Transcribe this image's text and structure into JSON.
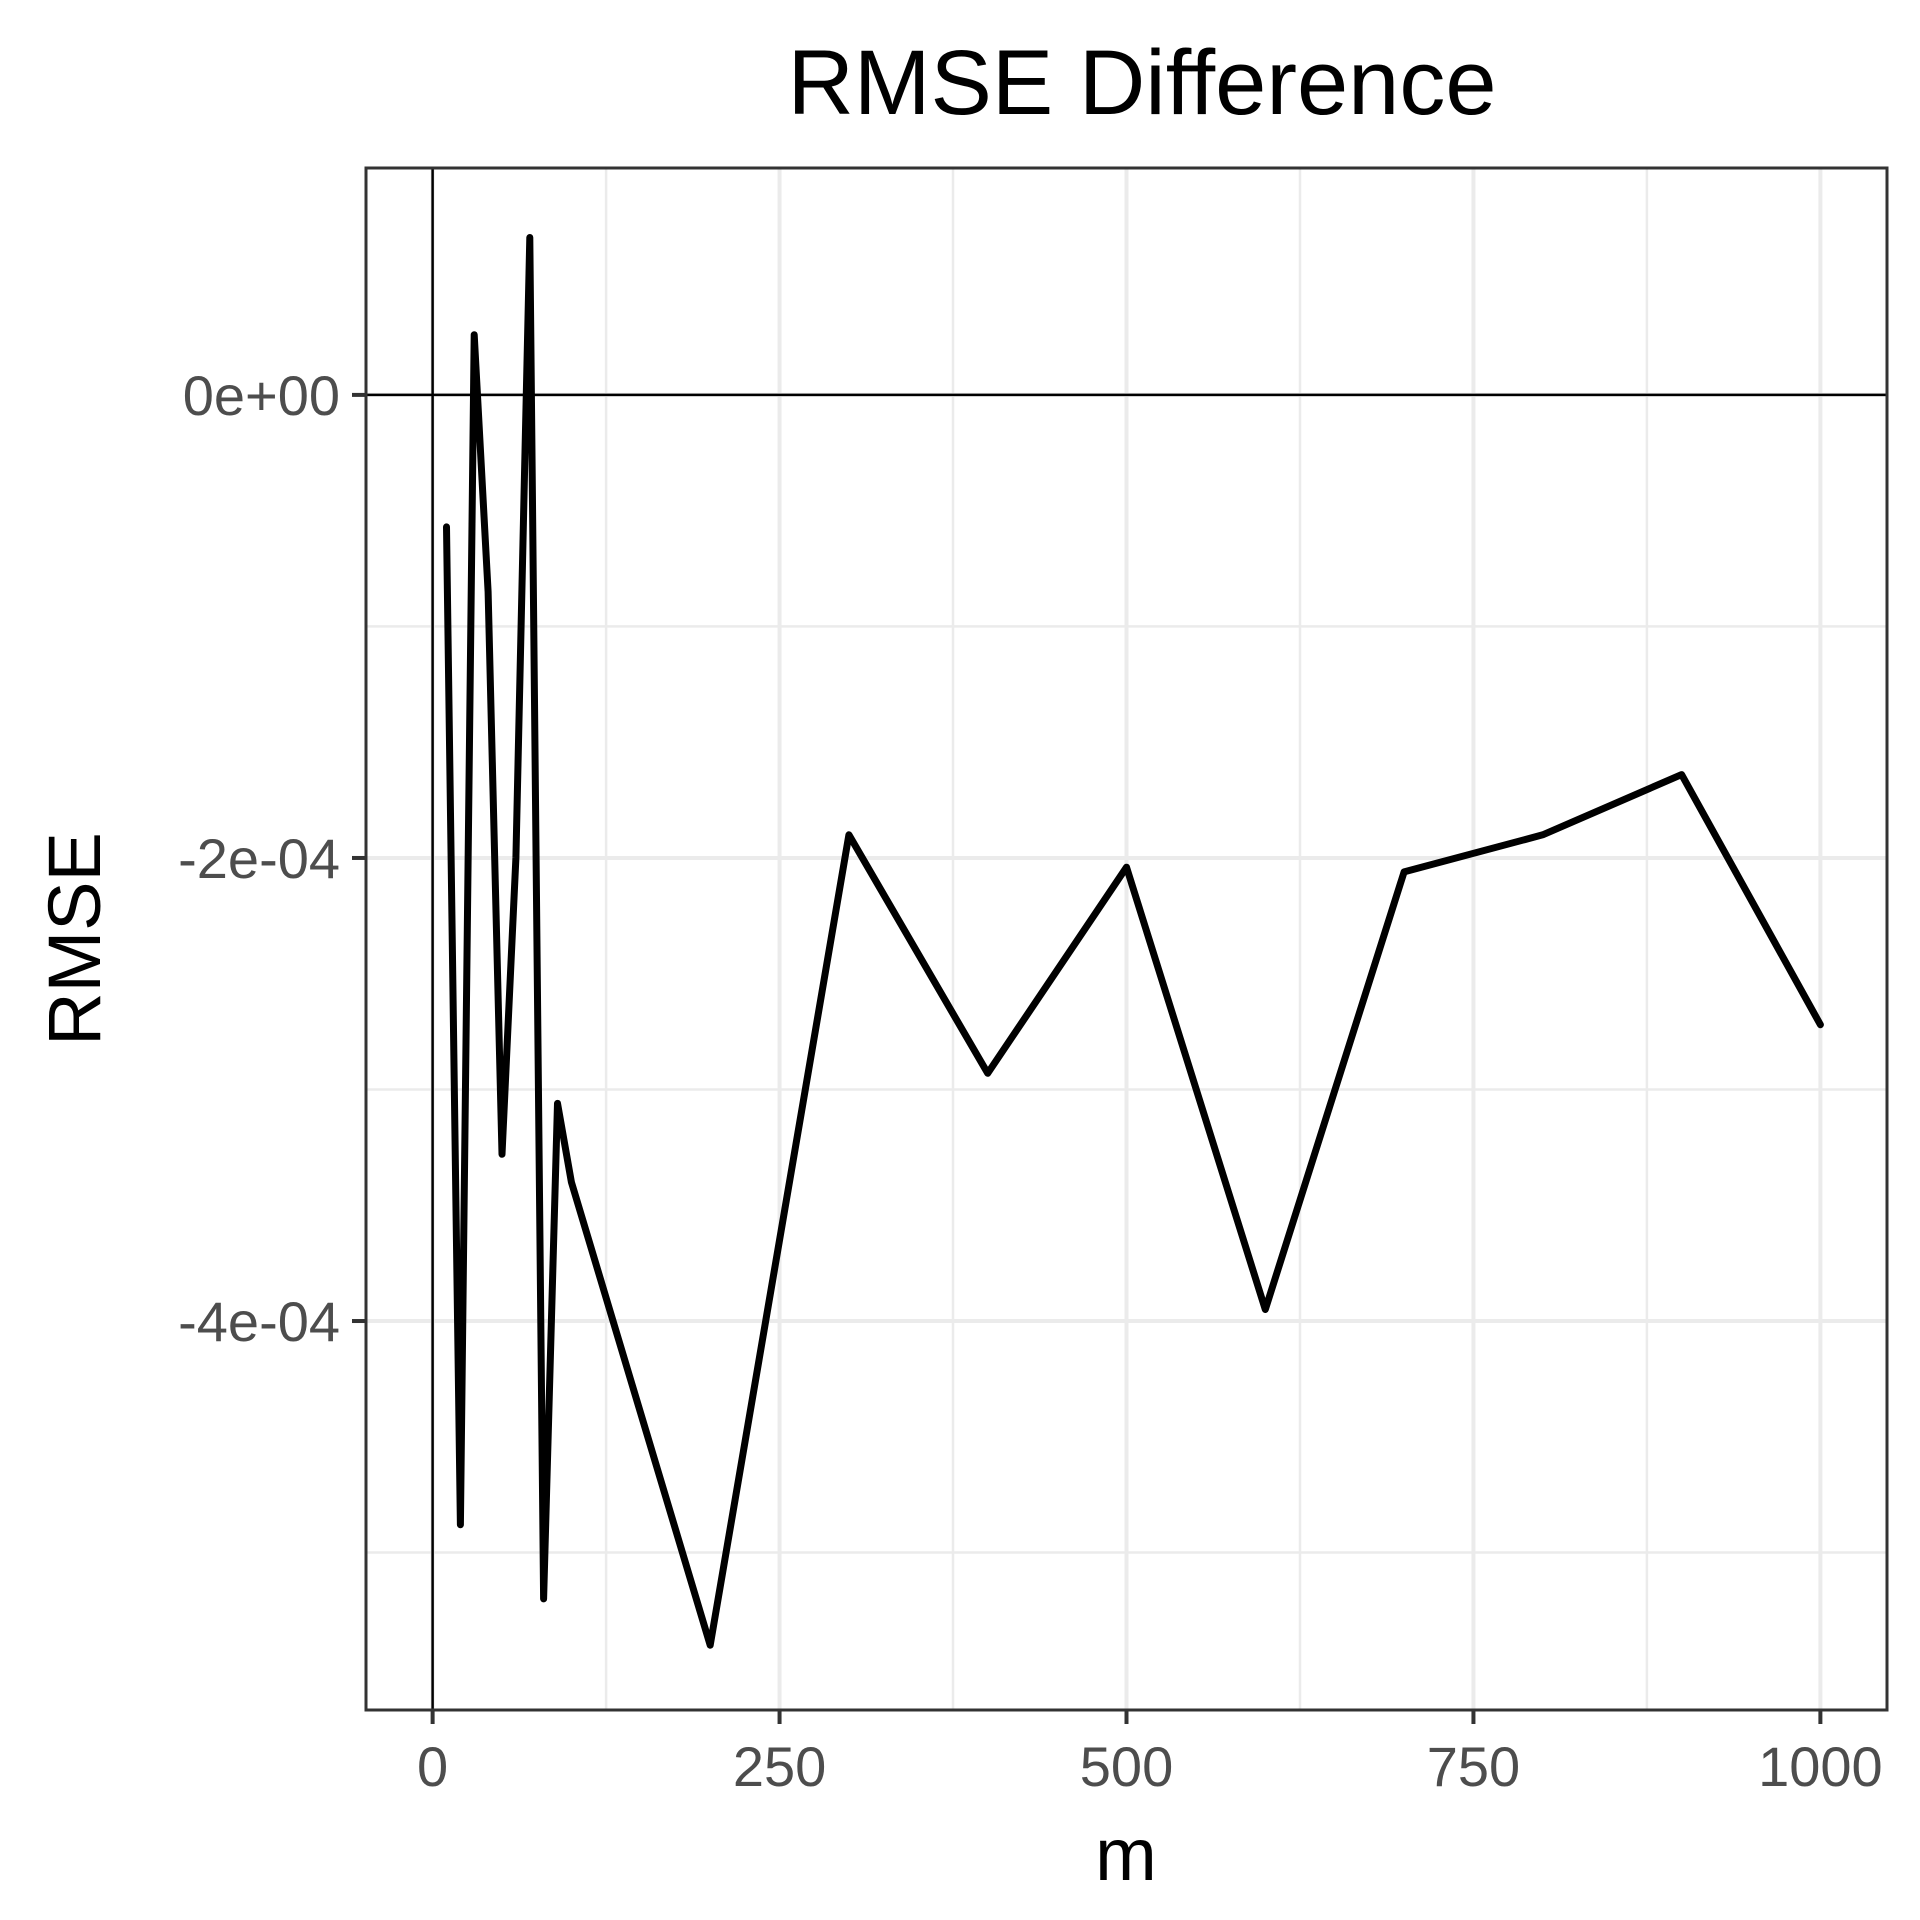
{
  "chart_data": {
    "type": "line",
    "title": "RMSE Difference",
    "xlabel": "m",
    "ylabel": "RMSE",
    "xlim": [
      -48,
      1048
    ],
    "ylim": [
      -0.000568,
      9.8e-05
    ],
    "x_ticks": [
      0,
      250,
      500,
      750,
      1000
    ],
    "x_tick_labels": [
      "0",
      "250",
      "500",
      "750",
      "1000"
    ],
    "y_ticks": [
      0,
      -0.0002,
      -0.0004
    ],
    "y_tick_labels": [
      "0e+00",
      "-2e-04",
      "-4e-04"
    ],
    "x_minor_ticks": [
      125,
      375,
      625,
      875
    ],
    "y_minor_ticks": [
      -0.0001,
      -0.0003,
      -0.0005
    ],
    "reference_lines": {
      "x": 0,
      "y": 0
    },
    "grid": true,
    "series": [
      {
        "color": "#000000",
        "x": [
          10,
          20,
          30,
          40,
          50,
          60,
          70,
          80,
          90,
          100,
          200,
          300,
          400,
          500,
          600,
          700,
          800,
          900,
          1000
        ],
        "values": [
          -5.7e-05,
          -0.000488,
          2.6e-05,
          -8.5e-05,
          -0.000328,
          -0.0002,
          6.8e-05,
          -0.00052,
          -0.000306,
          -0.00034,
          -0.00054,
          -0.00019,
          -0.000293,
          -0.000204,
          -0.000395,
          -0.000206,
          -0.00019,
          -0.000164,
          -0.000272
        ]
      }
    ]
  }
}
